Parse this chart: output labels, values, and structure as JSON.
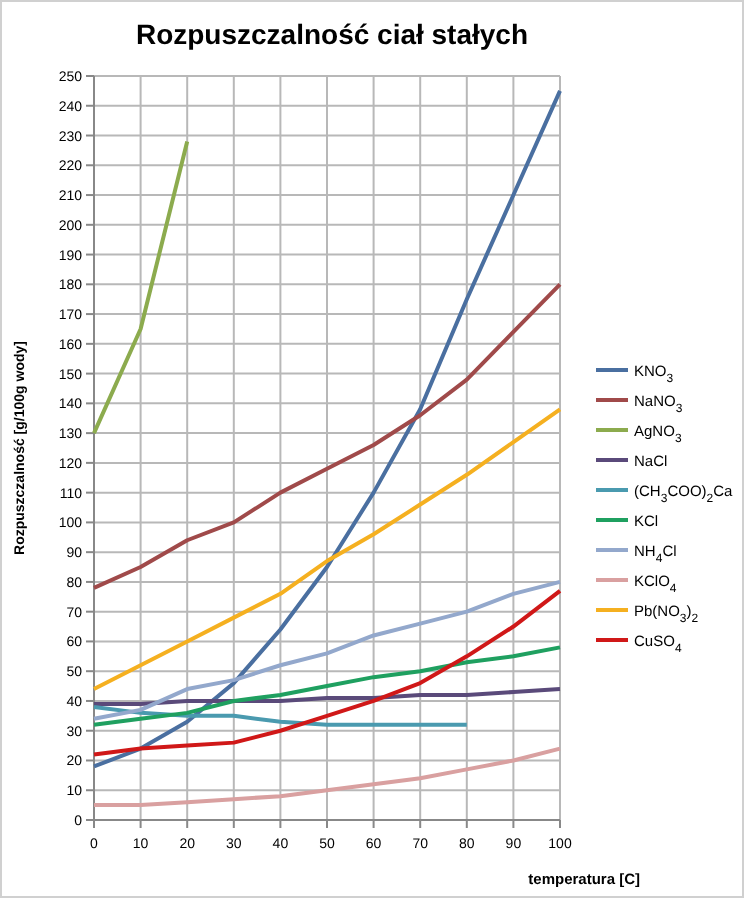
{
  "chart_data": {
    "type": "line",
    "title": "Rozpuszczalność ciał stałych",
    "xlabel": "temperatura [C]",
    "ylabel": "Rozpuszczalność  [g/100g wody]",
    "x": [
      0,
      10,
      20,
      30,
      40,
      50,
      60,
      70,
      80,
      90,
      100
    ],
    "series": [
      {
        "name": "KNO$_{3}$",
        "color": "#4a6fa0",
        "values": [
          18,
          24,
          33,
          46,
          64,
          85,
          110,
          138,
          175,
          210,
          245
        ]
      },
      {
        "name": "NaNO$_{3}$",
        "color": "#a04a4a",
        "values": [
          78,
          85,
          94,
          100,
          110,
          118,
          126,
          136,
          148,
          164,
          180
        ]
      },
      {
        "name": "AgNO$_{3}$",
        "color": "#8cab4e",
        "x": [
          0,
          10,
          20
        ],
        "values": [
          130,
          165,
          228
        ]
      },
      {
        "name": "NaCl",
        "color": "#5a4a7a",
        "values": [
          39,
          39,
          40,
          40,
          40,
          41,
          41,
          42,
          42,
          43,
          44
        ]
      },
      {
        "name": "(CH$_{3}$COO)$_{2}$Ca",
        "color": "#4a9aaf",
        "x": [
          0,
          10,
          20,
          30,
          40,
          50,
          60,
          70,
          80
        ],
        "values": [
          38,
          36,
          35,
          35,
          33,
          32,
          32,
          32,
          32
        ]
      },
      {
        "name": "KCl",
        "color": "#1fa060",
        "values": [
          32,
          34,
          36,
          40,
          42,
          45,
          48,
          50,
          53,
          55,
          58
        ]
      },
      {
        "name": "NH$_{4}$Cl",
        "color": "#93a8cc",
        "values": [
          34,
          37,
          44,
          47,
          52,
          56,
          62,
          66,
          70,
          76,
          80
        ]
      },
      {
        "name": "KClO$_{4}$",
        "color": "#d9a0a0",
        "values": [
          5,
          5,
          6,
          7,
          8,
          10,
          12,
          14,
          17,
          20,
          24
        ]
      },
      {
        "name": "Pb(NO$_{3}$)$_{2}$",
        "color": "#f5b020",
        "values": [
          44,
          52,
          60,
          68,
          76,
          87,
          96,
          106,
          116,
          127,
          138
        ]
      },
      {
        "name": "CuSO$_{4}$",
        "color": "#d01818",
        "values": [
          22,
          24,
          25,
          26,
          30,
          35,
          40,
          46,
          55,
          65,
          77
        ]
      }
    ],
    "xlim": [
      0,
      100
    ],
    "xticks": [
      0,
      10,
      20,
      30,
      40,
      50,
      60,
      70,
      80,
      90,
      100
    ],
    "ylim": [
      0,
      250
    ],
    "yticks": [
      0,
      10,
      20,
      30,
      40,
      50,
      60,
      70,
      80,
      90,
      100,
      110,
      120,
      130,
      140,
      150,
      160,
      170,
      180,
      190,
      200,
      210,
      220,
      230,
      240,
      250
    ],
    "grid": true,
    "legend": "right",
    "marker": "none",
    "line_style": "solid"
  }
}
